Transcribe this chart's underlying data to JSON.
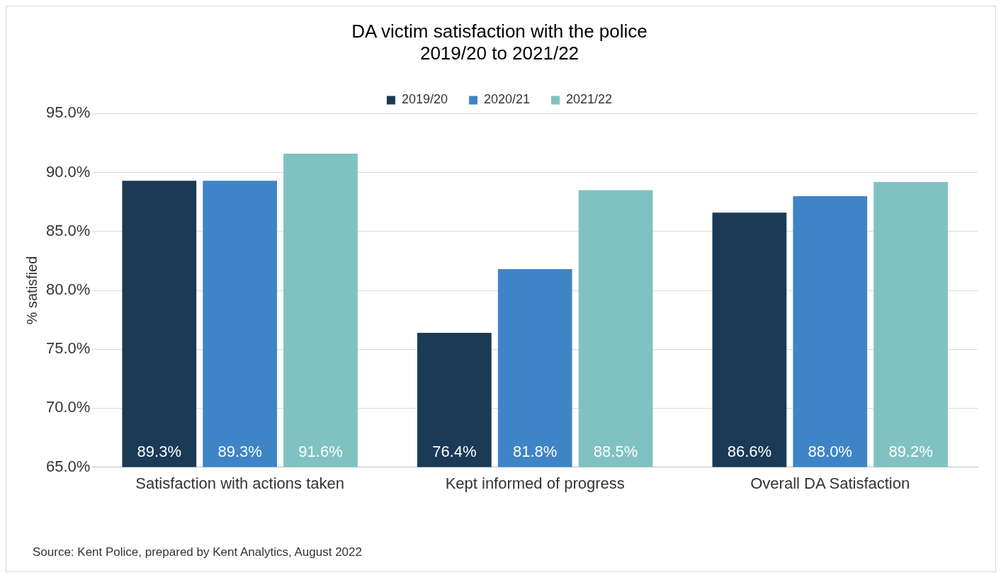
{
  "chart_data": {
    "type": "bar",
    "title": "DA victim satisfaction with the police\n2019/20 to 2021/22",
    "ylabel": "% satisfied",
    "categories": [
      "Satisfaction with actions taken",
      "Kept informed of progress",
      "Overall DA Satisfaction"
    ],
    "series": [
      {
        "name": "2019/20",
        "color": "#1a3a56",
        "values": [
          89.3,
          76.4,
          86.6
        ],
        "value_labels": [
          "89.3%",
          "76.4%",
          "86.6%"
        ]
      },
      {
        "name": "2020/21",
        "color": "#3f84c6",
        "values": [
          89.3,
          81.8,
          88.0
        ],
        "value_labels": [
          "89.3%",
          "81.8%",
          "88.0%"
        ]
      },
      {
        "name": "2021/22",
        "color": "#80c2c1",
        "values": [
          91.6,
          88.5,
          89.2
        ],
        "value_labels": [
          "91.6%",
          "88.5%",
          "89.2%"
        ]
      }
    ],
    "ylim": [
      65,
      95
    ],
    "yticks": [
      {
        "value": 65,
        "label": "65.0%"
      },
      {
        "value": 70,
        "label": "70.0%"
      },
      {
        "value": 75,
        "label": "75.0%"
      },
      {
        "value": 80,
        "label": "80.0%"
      },
      {
        "value": 85,
        "label": "85.0%"
      },
      {
        "value": 90,
        "label": "90.0%"
      },
      {
        "value": 95,
        "label": "95.0%"
      }
    ],
    "grid": "y",
    "legend": "top",
    "annotations": [
      "Source: Kent Police, prepared by Kent Analytics, August 2022"
    ]
  }
}
